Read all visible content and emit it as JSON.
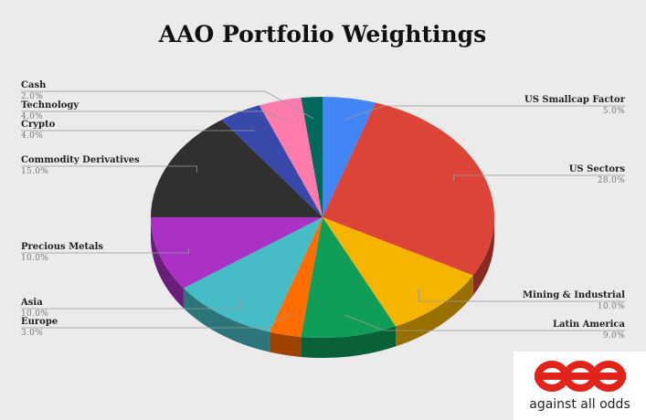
{
  "chart_data": {
    "type": "pie",
    "title": "AAO Portfolio Weightings",
    "slices": [
      {
        "label": "US Smallcap Factor",
        "value": 5.0,
        "value_label": "5.0%",
        "color": "#4285f4",
        "side": "color-dark"
      },
      {
        "label": "US Sectors",
        "value": 28.0,
        "value_label": "28.0%",
        "color": "#db4437"
      },
      {
        "label": "Mining & Industrial",
        "value": 10.0,
        "value_label": "10.0%",
        "color": "#f4b400"
      },
      {
        "label": "Latin America",
        "value": 9.0,
        "value_label": "9.0%",
        "color": "#0f9d58"
      },
      {
        "label": "Europe",
        "value": 3.0,
        "value_label": "3.0%",
        "color": "#ff6d00"
      },
      {
        "label": "Asia",
        "value": 10.0,
        "value_label": "10.0%",
        "color": "#46bdc6"
      },
      {
        "label": "Precious Metals",
        "value": 10.0,
        "value_label": "10.0%",
        "color": "#ab30c4"
      },
      {
        "label": "Commodity Derivatives",
        "value": 15.0,
        "value_label": "15.0%",
        "color": "#303030"
      },
      {
        "label": "Crypto",
        "value": 4.0,
        "value_label": "4.0%",
        "color": "#3949ab"
      },
      {
        "label": "Technology",
        "value": 4.0,
        "value_label": "4.0%",
        "color": "#ff7bac"
      },
      {
        "label": "Cash",
        "value": 2.0,
        "value_label": "2.0%",
        "color": "#00695c"
      }
    ]
  },
  "logo": {
    "mark_color": "#e2231a",
    "tagline": "against all odds"
  }
}
